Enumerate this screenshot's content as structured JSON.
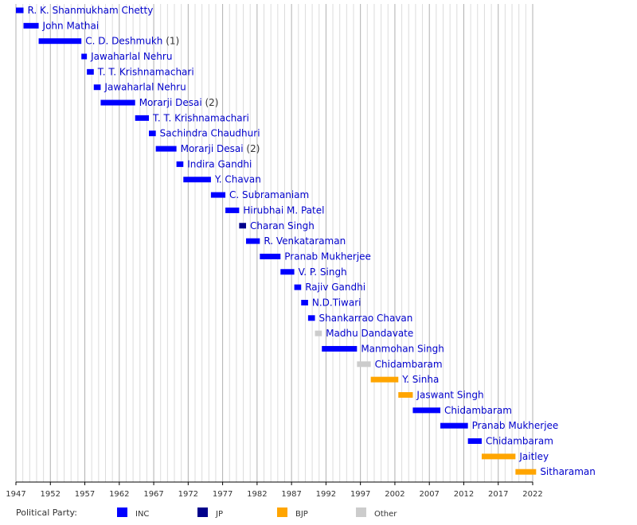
{
  "chart_data": {
    "type": "bar",
    "orientation": "horizontal-timeline",
    "x_axis": {
      "range": [
        1947,
        2022
      ],
      "ticks": [
        1947,
        1952,
        1957,
        1962,
        1967,
        1972,
        1977,
        1982,
        1987,
        1992,
        1997,
        2002,
        2007,
        2012,
        2017,
        2022
      ],
      "minor_grid_step": 1,
      "grid": true
    },
    "legend": {
      "title": "Political Party:",
      "placement": "bottom",
      "items": [
        {
          "key": "INC",
          "label": "INC",
          "color": "#0000ff"
        },
        {
          "key": "JP",
          "label": "JP",
          "color": "#00008b"
        },
        {
          "key": "BJP",
          "label": "BJP",
          "color": "#ffa500"
        },
        {
          "key": "Other",
          "label": "Other",
          "color": "#cccccc"
        }
      ]
    },
    "terms": [
      {
        "name": "R. K. Shanmukham Chetty",
        "suffix": "",
        "party": "INC",
        "start": 1947.0,
        "end": 1948.1
      },
      {
        "name": "John Mathai",
        "suffix": "",
        "party": "INC",
        "start": 1948.1,
        "end": 1950.3
      },
      {
        "name": "C. D. Deshmukh",
        "suffix": "(1)",
        "party": "INC",
        "start": 1950.3,
        "end": 1956.5
      },
      {
        "name": "Jawaharlal Nehru",
        "suffix": "",
        "party": "INC",
        "start": 1956.5,
        "end": 1957.3
      },
      {
        "name": "T. T. Krishnamachari",
        "suffix": "",
        "party": "INC",
        "start": 1957.3,
        "end": 1958.3
      },
      {
        "name": "Jawaharlal Nehru",
        "suffix": "",
        "party": "INC",
        "start": 1958.3,
        "end": 1959.3
      },
      {
        "name": "Morarji Desai",
        "suffix": "(2)",
        "party": "INC",
        "start": 1959.3,
        "end": 1964.3
      },
      {
        "name": "T. T. Krishnamachari",
        "suffix": "",
        "party": "INC",
        "start": 1964.3,
        "end": 1966.3
      },
      {
        "name": "Sachindra Chaudhuri",
        "suffix": "",
        "party": "INC",
        "start": 1966.3,
        "end": 1967.3
      },
      {
        "name": "Morarji Desai",
        "suffix": "(2)",
        "party": "INC",
        "start": 1967.3,
        "end": 1970.3
      },
      {
        "name": "Indira Gandhi",
        "suffix": "",
        "party": "INC",
        "start": 1970.3,
        "end": 1971.3
      },
      {
        "name": "Y. Chavan",
        "suffix": "",
        "party": "INC",
        "start": 1971.3,
        "end": 1975.3
      },
      {
        "name": "C. Subramaniam",
        "suffix": "",
        "party": "INC",
        "start": 1975.3,
        "end": 1977.4
      },
      {
        "name": "Hirubhai M. Patel",
        "suffix": "",
        "party": "INC",
        "start": 1977.4,
        "end": 1979.4
      },
      {
        "name": "Charan Singh",
        "suffix": "",
        "party": "JP",
        "start": 1979.4,
        "end": 1980.4
      },
      {
        "name": "R. Venkataraman",
        "suffix": "",
        "party": "INC",
        "start": 1980.4,
        "end": 1982.4
      },
      {
        "name": "Pranab Mukherjee",
        "suffix": "",
        "party": "INC",
        "start": 1982.4,
        "end": 1985.4
      },
      {
        "name": "V. P. Singh",
        "suffix": "",
        "party": "INC",
        "start": 1985.4,
        "end": 1987.4
      },
      {
        "name": "Rajiv Gandhi",
        "suffix": "",
        "party": "INC",
        "start": 1987.4,
        "end": 1988.4
      },
      {
        "name": "N.D.Tiwari",
        "suffix": "",
        "party": "INC",
        "start": 1988.4,
        "end": 1989.4
      },
      {
        "name": "Shankarrao Chavan",
        "suffix": "",
        "party": "INC",
        "start": 1989.4,
        "end": 1990.4
      },
      {
        "name": "Madhu Dandavate",
        "suffix": "",
        "party": "Other",
        "start": 1990.4,
        "end": 1991.4
      },
      {
        "name": "Manmohan Singh",
        "suffix": "",
        "party": "INC",
        "start": 1991.4,
        "end": 1996.5
      },
      {
        "name": "Chidambaram",
        "suffix": "",
        "party": "Other",
        "start": 1996.5,
        "end": 1998.5
      },
      {
        "name": "Y. Sinha",
        "suffix": "",
        "party": "BJP",
        "start": 1998.5,
        "end": 2002.5
      },
      {
        "name": "Jaswant Singh",
        "suffix": "",
        "party": "BJP",
        "start": 2002.5,
        "end": 2004.6
      },
      {
        "name": "Chidambaram",
        "suffix": "",
        "party": "INC",
        "start": 2004.6,
        "end": 2008.6
      },
      {
        "name": "Pranab Mukherjee",
        "suffix": "",
        "party": "INC",
        "start": 2008.6,
        "end": 2012.6
      },
      {
        "name": "Chidambaram",
        "suffix": "",
        "party": "INC",
        "start": 2012.6,
        "end": 2014.6
      },
      {
        "name": "Jaitley",
        "suffix": "",
        "party": "BJP",
        "start": 2014.6,
        "end": 2019.5
      },
      {
        "name": "Sitharaman",
        "suffix": "",
        "party": "BJP",
        "start": 2019.5,
        "end": 2022.5
      }
    ]
  }
}
